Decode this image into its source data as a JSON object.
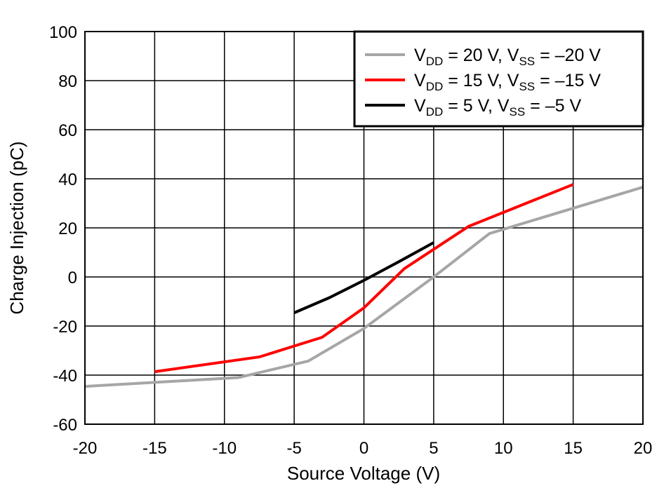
{
  "chart_data": {
    "type": "line",
    "title": "",
    "xlabel": "Source Voltage (V)",
    "ylabel": "Charge Injection (pC)",
    "xlim": [
      -20,
      20
    ],
    "ylim": [
      -60,
      100
    ],
    "xticks": [
      -20,
      -15,
      -10,
      -5,
      0,
      5,
      10,
      15,
      20
    ],
    "yticks": [
      -60,
      -40,
      -20,
      0,
      20,
      40,
      60,
      80,
      100
    ],
    "grid": true,
    "legend_position": "top-right",
    "series": [
      {
        "name": "VDD = 20 V, VSS = –20 V",
        "legend": {
          "a": "V",
          "a_sub": "DD",
          "b": " = 20 V, V",
          "b_sub": "SS",
          "c": " = –20 V"
        },
        "color": "#A6A6A6",
        "x": [
          -20,
          -9,
          -4,
          0,
          5,
          9,
          20
        ],
        "y": [
          -44.6,
          -41,
          -34.3,
          -21,
          0,
          17.7,
          36.6
        ]
      },
      {
        "name": "VDD = 15 V, VSS = –15 V",
        "legend": {
          "a": "V",
          "a_sub": "DD",
          "b": " = 15 V, V",
          "b_sub": "SS",
          "c": " = –15 V"
        },
        "color": "#FF0000",
        "x": [
          -15,
          -7.5,
          -3,
          0,
          2.9,
          7.5,
          15
        ],
        "y": [
          -38.6,
          -32.6,
          -24.6,
          -12.6,
          3.4,
          20.6,
          37.7
        ]
      },
      {
        "name": "VDD = 5 V, VSS = –5 V",
        "legend": {
          "a": "V",
          "a_sub": "DD",
          "b": " = 5 V, V",
          "b_sub": "SS",
          "c": " = –5 V"
        },
        "color": "#000000",
        "x": [
          -5,
          -2.5,
          0,
          2.5,
          5
        ],
        "y": [
          -14.6,
          -8.5,
          -1.4,
          6.2,
          14
        ]
      }
    ]
  }
}
